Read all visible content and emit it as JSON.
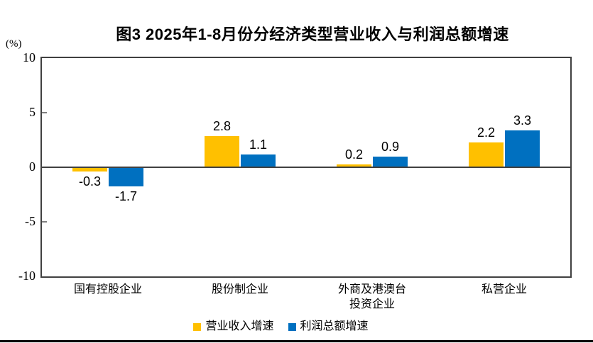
{
  "title": "图3 2025年1-8月份分经济类型营业收入与利润总额增速",
  "y_axis": {
    "unit_label": "(%)",
    "ticks": [
      "10",
      "5",
      "0",
      "-5",
      "-10"
    ]
  },
  "x_axis": {
    "labels": [
      [
        "国有控股企业"
      ],
      [
        "股份制企业"
      ],
      [
        "外商及港澳台",
        "投资企业"
      ],
      [
        "私营企业"
      ]
    ]
  },
  "legend": [
    {
      "label": "营业收入增速",
      "color": "#FFC000"
    },
    {
      "label": "利润总额增速",
      "color": "#0070C0"
    }
  ],
  "colors": {
    "bar_yellow": "#FFC000",
    "bar_blue": "#0070C0",
    "axis": "#404040",
    "bottom_rule": "#000000"
  },
  "chart_data": {
    "type": "bar",
    "title": "图3 2025年1-8月份分经济类型营业收入与利润总额增速",
    "categories": [
      "国有控股企业",
      "股份制企业",
      "外商及港澳台投资企业",
      "私营企业"
    ],
    "series": [
      {
        "name": "营业收入增速",
        "color": "#FFC000",
        "values": [
          -0.3,
          2.8,
          0.2,
          2.2
        ]
      },
      {
        "name": "利润总额增速",
        "color": "#0070C0",
        "values": [
          -1.7,
          1.1,
          0.9,
          3.3
        ]
      }
    ],
    "ylabel": "(%)",
    "ylim": [
      -10,
      10
    ],
    "yticks": [
      10,
      5,
      0,
      -5,
      -10
    ],
    "grid": false,
    "legend_position": "bottom",
    "data_labels": true
  }
}
